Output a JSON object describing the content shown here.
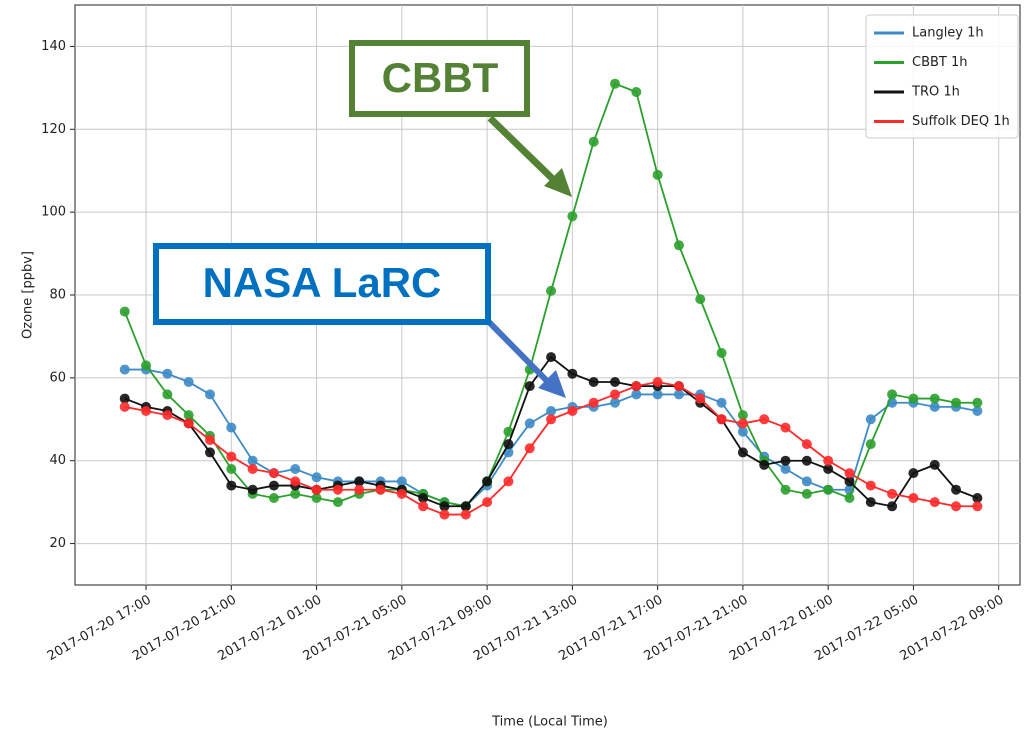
{
  "chart_data": {
    "type": "line",
    "xlabel": "Time (Local Time)",
    "ylabel": "Ozone [ppbv]",
    "x": [
      "2017-07-20 16:00",
      "2017-07-20 17:00",
      "2017-07-20 18:00",
      "2017-07-20 19:00",
      "2017-07-20 20:00",
      "2017-07-20 21:00",
      "2017-07-20 22:00",
      "2017-07-20 23:00",
      "2017-07-21 00:00",
      "2017-07-21 01:00",
      "2017-07-21 02:00",
      "2017-07-21 03:00",
      "2017-07-21 04:00",
      "2017-07-21 05:00",
      "2017-07-21 06:00",
      "2017-07-21 07:00",
      "2017-07-21 08:00",
      "2017-07-21 09:00",
      "2017-07-21 10:00",
      "2017-07-21 11:00",
      "2017-07-21 12:00",
      "2017-07-21 13:00",
      "2017-07-21 14:00",
      "2017-07-21 15:00",
      "2017-07-21 16:00",
      "2017-07-21 17:00",
      "2017-07-21 18:00",
      "2017-07-21 19:00",
      "2017-07-21 20:00",
      "2017-07-21 21:00",
      "2017-07-21 22:00",
      "2017-07-21 23:00",
      "2017-07-22 00:00",
      "2017-07-22 01:00",
      "2017-07-22 02:00",
      "2017-07-22 03:00",
      "2017-07-22 04:00",
      "2017-07-22 05:00",
      "2017-07-22 06:00",
      "2017-07-22 07:00",
      "2017-07-22 08:00"
    ],
    "series": [
      {
        "name": "Langley 1h",
        "color": "#3d8bc6",
        "values": [
          62,
          62,
          61,
          59,
          56,
          48,
          40,
          37,
          38,
          36,
          35,
          35,
          35,
          35,
          32,
          30,
          29,
          34,
          42,
          49,
          52,
          53,
          53,
          54,
          56,
          56,
          56,
          56,
          54,
          47,
          41,
          38,
          35,
          33,
          33,
          50,
          54,
          54,
          53,
          53,
          52
        ]
      },
      {
        "name": "CBBT 1h",
        "color": "#2ca02c",
        "values": [
          76,
          63,
          56,
          51,
          46,
          38,
          32,
          31,
          32,
          31,
          30,
          32,
          33,
          33,
          32,
          30,
          29,
          35,
          47,
          62,
          81,
          99,
          117,
          131,
          129,
          109,
          92,
          79,
          66,
          51,
          40,
          33,
          32,
          33,
          31,
          44,
          56,
          55,
          55,
          54,
          54
        ]
      },
      {
        "name": "TRO 1h",
        "color": "#111111",
        "values": [
          55,
          53,
          52,
          49,
          42,
          34,
          33,
          34,
          34,
          33,
          34,
          35,
          34,
          33,
          31,
          29,
          29,
          35,
          44,
          58,
          65,
          61,
          59,
          59,
          58,
          58,
          58,
          54,
          50,
          42,
          39,
          40,
          40,
          38,
          35,
          30,
          29,
          37,
          39,
          33,
          31
        ]
      },
      {
        "name": "Suffolk DEQ 1h",
        "color": "#ff2a2a",
        "values": [
          53,
          52,
          51,
          49,
          45,
          41,
          38,
          37,
          35,
          33,
          33,
          33,
          33,
          32,
          29,
          27,
          27,
          30,
          35,
          43,
          50,
          52,
          54,
          56,
          58,
          59,
          58,
          55,
          50,
          49,
          50,
          48,
          44,
          40,
          37,
          34,
          32,
          31,
          30,
          29,
          29
        ]
      }
    ],
    "xlim": [
      "2017-07-20 13:40",
      "2017-07-22 10:00"
    ],
    "xticks": [
      "2017-07-20 17:00",
      "2017-07-20 21:00",
      "2017-07-21 01:00",
      "2017-07-21 05:00",
      "2017-07-21 09:00",
      "2017-07-21 13:00",
      "2017-07-21 17:00",
      "2017-07-21 21:00",
      "2017-07-22 01:00",
      "2017-07-22 05:00",
      "2017-07-22 09:00"
    ],
    "ylim": [
      10,
      150
    ],
    "yticks": [
      20,
      40,
      60,
      80,
      100,
      120,
      140
    ],
    "grid": true,
    "legend": "upper right",
    "annotations": [
      {
        "text": "CBBT",
        "color": "#548235"
      },
      {
        "text": "NASA LaRC",
        "color": "#0070c0"
      }
    ]
  }
}
